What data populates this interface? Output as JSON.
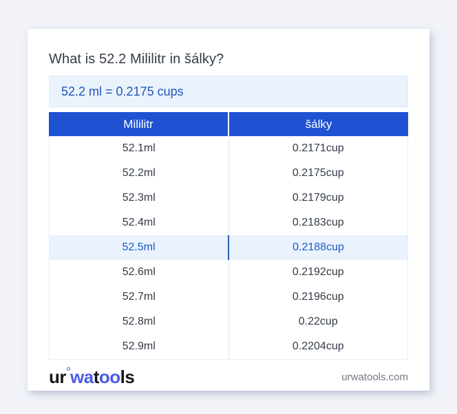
{
  "title": "What is 52.2 Mililitr in šálky?",
  "result": "52.2 ml = 0.2175 cups",
  "table": {
    "headers": [
      "Mililitr",
      "šálky"
    ],
    "rows": [
      [
        "52.1ml",
        "0.2171cup"
      ],
      [
        "52.2ml",
        "0.2175cup"
      ],
      [
        "52.3ml",
        "0.2179cup"
      ],
      [
        "52.4ml",
        "0.2183cup"
      ],
      [
        "52.5ml",
        "0.2188cup"
      ],
      [
        "52.6ml",
        "0.2192cup"
      ],
      [
        "52.7ml",
        "0.2196cup"
      ],
      [
        "52.8ml",
        "0.22cup"
      ],
      [
        "52.9ml",
        "0.2204cup"
      ]
    ],
    "highlighted_row_index": 4
  },
  "footer": {
    "logo_segments": [
      {
        "text": "ur",
        "blue": false
      },
      {
        "ring": true
      },
      {
        "text": "wa",
        "blue": true
      },
      {
        "text": "t",
        "blue": false
      },
      {
        "text": "oo",
        "blue": true
      },
      {
        "text": "ls",
        "blue": false
      }
    ],
    "domain": "urwatools.com"
  },
  "colors": {
    "page_bg": "#f1f3f9",
    "header_bg": "#1e52d2",
    "highlight_bg": "#e9f2fd",
    "highlight_text": "#1d5ac2",
    "result_text": "#2156b8",
    "logo_blue": "#4b5ae8"
  }
}
